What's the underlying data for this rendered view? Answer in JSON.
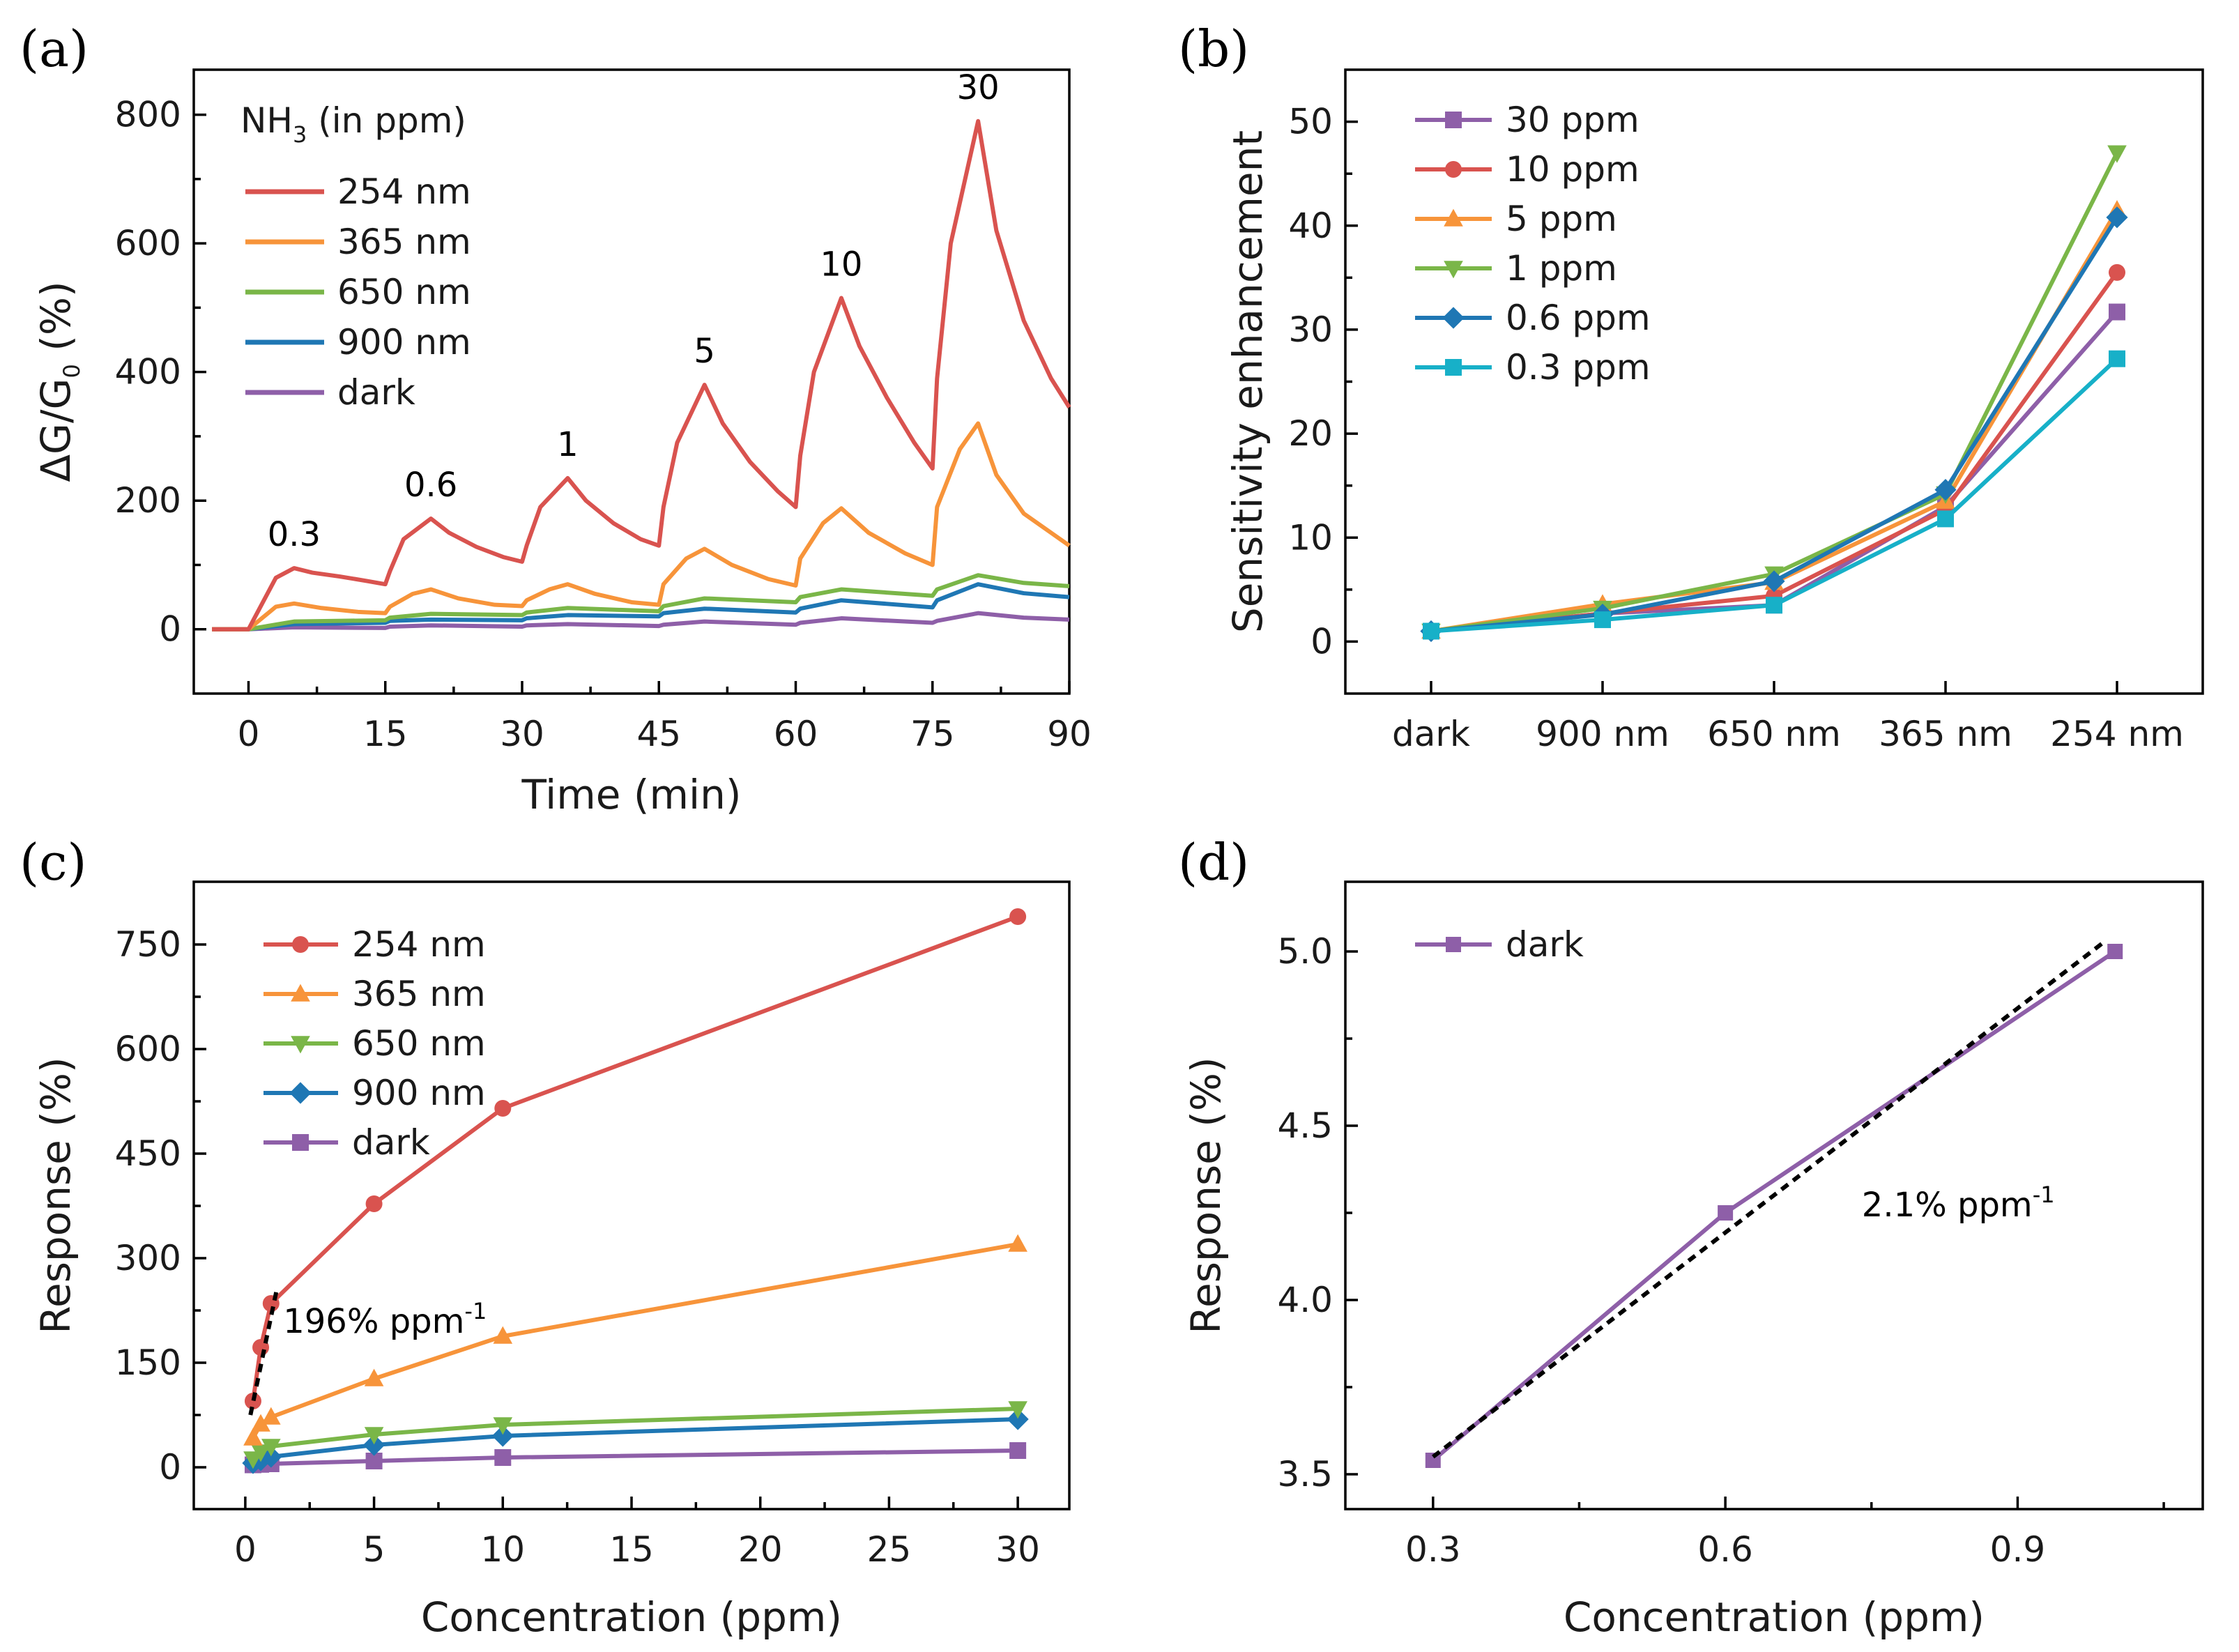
{
  "chart_data": [
    {
      "panel": "(a)",
      "type": "line",
      "xlabel": "Time (min)",
      "ylabel_parts": [
        "ΔG/G",
        "0",
        " (%)"
      ],
      "xlim": [
        -6,
        90
      ],
      "ylim": [
        -100,
        870
      ],
      "xticks": [
        0,
        15,
        30,
        45,
        60,
        75,
        90
      ],
      "yticks": [
        0,
        200,
        400,
        600,
        800
      ],
      "legend_title": [
        "NH",
        "3",
        " (in ppm)"
      ],
      "concentration_labels": [
        {
          "text": "0.3",
          "x": 5,
          "y": 95
        },
        {
          "text": "0.6",
          "x": 20,
          "y": 172
        },
        {
          "text": "1",
          "x": 35,
          "y": 235
        },
        {
          "text": "5",
          "x": 50,
          "y": 380
        },
        {
          "text": "10",
          "x": 65,
          "y": 515
        },
        {
          "text": "30",
          "x": 80,
          "y": 790
        }
      ],
      "series": [
        {
          "name": "254 nm",
          "color": "#d9534f",
          "values": [
            [
              -4,
              0
            ],
            [
              0,
              0
            ],
            [
              3,
              80
            ],
            [
              5,
              95
            ],
            [
              7,
              88
            ],
            [
              10,
              82
            ],
            [
              13,
              75
            ],
            [
              15,
              70
            ],
            [
              15.5,
              90
            ],
            [
              17,
              140
            ],
            [
              20,
              172
            ],
            [
              22,
              150
            ],
            [
              25,
              128
            ],
            [
              28,
              112
            ],
            [
              30,
              105
            ],
            [
              30.5,
              130
            ],
            [
              32,
              190
            ],
            [
              35,
              235
            ],
            [
              37,
              200
            ],
            [
              40,
              165
            ],
            [
              43,
              140
            ],
            [
              45,
              130
            ],
            [
              45.5,
              190
            ],
            [
              47,
              290
            ],
            [
              50,
              380
            ],
            [
              52,
              320
            ],
            [
              55,
              260
            ],
            [
              58,
              215
            ],
            [
              60,
              190
            ],
            [
              60.5,
              270
            ],
            [
              62,
              400
            ],
            [
              65,
              515
            ],
            [
              67,
              440
            ],
            [
              70,
              360
            ],
            [
              73,
              290
            ],
            [
              75,
              250
            ],
            [
              75.5,
              390
            ],
            [
              77,
              600
            ],
            [
              80,
              790
            ],
            [
              82,
              620
            ],
            [
              85,
              480
            ],
            [
              88,
              390
            ],
            [
              90,
              345
            ]
          ]
        },
        {
          "name": "365 nm",
          "color": "#f7943a",
          "values": [
            [
              -4,
              0
            ],
            [
              0,
              0
            ],
            [
              3,
              35
            ],
            [
              5,
              40
            ],
            [
              8,
              33
            ],
            [
              12,
              27
            ],
            [
              15,
              25
            ],
            [
              15.5,
              35
            ],
            [
              18,
              55
            ],
            [
              20,
              62
            ],
            [
              23,
              48
            ],
            [
              27,
              38
            ],
            [
              30,
              36
            ],
            [
              30.5,
              45
            ],
            [
              33,
              62
            ],
            [
              35,
              70
            ],
            [
              38,
              55
            ],
            [
              42,
              42
            ],
            [
              45,
              38
            ],
            [
              45.5,
              70
            ],
            [
              48,
              110
            ],
            [
              50,
              125
            ],
            [
              53,
              100
            ],
            [
              57,
              78
            ],
            [
              60,
              68
            ],
            [
              60.5,
              110
            ],
            [
              63,
              165
            ],
            [
              65,
              188
            ],
            [
              68,
              150
            ],
            [
              72,
              118
            ],
            [
              75,
              100
            ],
            [
              75.5,
              190
            ],
            [
              78,
              280
            ],
            [
              80,
              320
            ],
            [
              82,
              240
            ],
            [
              85,
              180
            ],
            [
              88,
              150
            ],
            [
              90,
              130
            ]
          ]
        },
        {
          "name": "650 nm",
          "color": "#7ab648",
          "values": [
            [
              -4,
              0
            ],
            [
              0,
              0
            ],
            [
              5,
              12
            ],
            [
              15,
              14
            ],
            [
              15.5,
              18
            ],
            [
              20,
              24
            ],
            [
              30,
              22
            ],
            [
              30.5,
              26
            ],
            [
              35,
              33
            ],
            [
              45,
              28
            ],
            [
              45.5,
              36
            ],
            [
              50,
              48
            ],
            [
              60,
              42
            ],
            [
              60.5,
              50
            ],
            [
              65,
              62
            ],
            [
              75,
              52
            ],
            [
              75.5,
              62
            ],
            [
              80,
              84
            ],
            [
              85,
              72
            ],
            [
              90,
              67
            ]
          ]
        },
        {
          "name": "900 nm",
          "color": "#1f77b4",
          "values": [
            [
              -4,
              0
            ],
            [
              0,
              0
            ],
            [
              5,
              8
            ],
            [
              15,
              10
            ],
            [
              15.5,
              13
            ],
            [
              20,
              15
            ],
            [
              30,
              14
            ],
            [
              30.5,
              17
            ],
            [
              35,
              22
            ],
            [
              45,
              20
            ],
            [
              45.5,
              25
            ],
            [
              50,
              32
            ],
            [
              60,
              26
            ],
            [
              60.5,
              32
            ],
            [
              65,
              45
            ],
            [
              75,
              34
            ],
            [
              75.5,
              45
            ],
            [
              80,
              70
            ],
            [
              85,
              56
            ],
            [
              90,
              50
            ]
          ]
        },
        {
          "name": "dark",
          "color": "#8e5fa8",
          "values": [
            [
              -4,
              0
            ],
            [
              0,
              0
            ],
            [
              5,
              3
            ],
            [
              15,
              2
            ],
            [
              15.5,
              4
            ],
            [
              20,
              6
            ],
            [
              30,
              4
            ],
            [
              30.5,
              6
            ],
            [
              35,
              8
            ],
            [
              45,
              5
            ],
            [
              45.5,
              7
            ],
            [
              50,
              12
            ],
            [
              60,
              7
            ],
            [
              60.5,
              10
            ],
            [
              65,
              17
            ],
            [
              75,
              10
            ],
            [
              75.5,
              13
            ],
            [
              80,
              25
            ],
            [
              85,
              18
            ],
            [
              90,
              15
            ]
          ]
        }
      ]
    },
    {
      "panel": "(b)",
      "type": "line",
      "xlabel": "",
      "ylabel": "Sensitivity enhancement",
      "categories": [
        "dark",
        "900 nm",
        "650 nm",
        "365 nm",
        "254 nm"
      ],
      "ylim": [
        -5,
        55
      ],
      "yticks": [
        0,
        10,
        20,
        30,
        40,
        50
      ],
      "series": [
        {
          "name": "30 ppm",
          "color": "#8e5fa8",
          "marker": "square",
          "values": [
            1,
            2.7,
            3.5,
            13,
            31.7
          ]
        },
        {
          "name": "10 ppm",
          "color": "#d9534f",
          "marker": "circle",
          "values": [
            1,
            2.7,
            4.4,
            12.7,
            35.5
          ]
        },
        {
          "name": "5 ppm",
          "color": "#f7943a",
          "marker": "triangle-up",
          "values": [
            1,
            3.6,
            5.7,
            13.5,
            41.5
          ]
        },
        {
          "name": "1 ppm",
          "color": "#7ab648",
          "marker": "triangle-down",
          "values": [
            1,
            3.2,
            6.5,
            14.2,
            47
          ]
        },
        {
          "name": "0.6 ppm",
          "color": "#1f77b4",
          "marker": "diamond",
          "values": [
            1,
            2.6,
            5.8,
            14.6,
            40.8
          ]
        },
        {
          "name": "0.3 ppm",
          "color": "#17b0c8",
          "marker": "square",
          "values": [
            1,
            2.1,
            3.5,
            11.8,
            27.2
          ]
        }
      ]
    },
    {
      "panel": "(c)",
      "type": "line",
      "xlabel": "Concentration (ppm)",
      "ylabel": "Response (%)",
      "xlim": [
        -2,
        32
      ],
      "ylim": [
        -60,
        840
      ],
      "xticks": [
        0,
        5,
        10,
        15,
        20,
        25,
        30
      ],
      "yticks": [
        0,
        150,
        300,
        450,
        600,
        750
      ],
      "x": [
        0.3,
        0.6,
        1,
        5,
        10,
        30
      ],
      "series": [
        {
          "name": "254 nm",
          "color": "#d9534f",
          "marker": "circle",
          "values": [
            95,
            172,
            235,
            378,
            515,
            790
          ]
        },
        {
          "name": "365 nm",
          "color": "#f7943a",
          "marker": "triangle-up",
          "values": [
            42,
            62,
            72,
            127,
            188,
            320
          ]
        },
        {
          "name": "650 nm",
          "color": "#7ab648",
          "marker": "triangle-down",
          "values": [
            12,
            22,
            30,
            47,
            61,
            84
          ]
        },
        {
          "name": "900 nm",
          "color": "#1f77b4",
          "marker": "diamond",
          "values": [
            6,
            10,
            15,
            32,
            45,
            69
          ]
        },
        {
          "name": "dark",
          "color": "#8e5fa8",
          "marker": "square",
          "values": [
            3.5,
            4.2,
            5,
            9,
            14,
            24
          ]
        }
      ],
      "fit_line": {
        "x": [
          0.2,
          1.25
        ],
        "y": [
          75,
          260
        ]
      },
      "annotation": {
        "text": "196% ppm",
        "sup": "-1",
        "x": 1.2,
        "y": 210
      }
    },
    {
      "panel": "(d)",
      "type": "line",
      "xlabel": "Concentration (ppm)",
      "ylabel": "Response (%)",
      "xlim": [
        0.21,
        1.09
      ],
      "ylim": [
        3.4,
        5.2
      ],
      "xticks": [
        0.3,
        0.6,
        0.9
      ],
      "yticks": [
        3.5,
        4.0,
        4.5,
        5.0
      ],
      "x": [
        0.3,
        0.6,
        1.0
      ],
      "series": [
        {
          "name": "dark",
          "color": "#8e5fa8",
          "marker": "square",
          "values": [
            3.54,
            4.25,
            5.0
          ]
        }
      ],
      "fit_line": {
        "x": [
          0.3,
          0.99
        ],
        "y": [
          3.55,
          5.03
        ]
      },
      "annotation": {
        "text": "2.1% ppm",
        "sup": "-1",
        "x": 0.74,
        "y": 4.24
      }
    }
  ]
}
